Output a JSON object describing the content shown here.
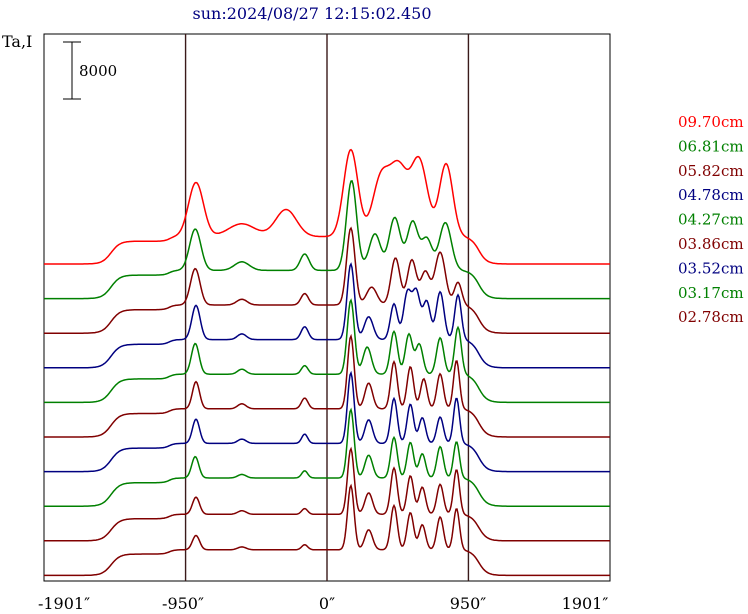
{
  "chart_data": {
    "type": "line",
    "title": "sun:2024/08/27 12:15:02.450",
    "ylabel": "Ta,I",
    "scale_bar_label": "8000",
    "xlim": [
      -1901,
      1901
    ],
    "x_ticks": [
      {
        "value": -1901,
        "label": "-1901″"
      },
      {
        "value": -950,
        "label": "-950″"
      },
      {
        "value": 0,
        "label": "0″"
      },
      {
        "value": 950,
        "label": "950″"
      },
      {
        "value": 1901,
        "label": "1901″"
      }
    ],
    "vertical_lines": [
      -950,
      0,
      950
    ],
    "series_offsets_note": "",
    "series": [
      {
        "name": "09.70cm",
        "color": "#ff0000",
        "baseline": 0,
        "peaks": [
          [
            -880,
            7600,
            50
          ],
          [
            -572,
            1800,
            90
          ],
          [
            -275,
            3800,
            70
          ],
          [
            160,
            12200,
            48
          ],
          [
            360,
            7800,
            55
          ],
          [
            480,
            9500,
            60
          ],
          [
            620,
            10500,
            55
          ],
          [
            800,
            10200,
            45
          ]
        ],
        "plateau": [
          -1450,
          1020,
          2200,
          3200
        ]
      },
      {
        "name": "06.81cm",
        "color": "#008000",
        "baseline": 0,
        "peaks": [
          [
            -885,
            5800,
            38
          ],
          [
            -572,
            1200,
            50
          ],
          [
            -150,
            2300,
            30
          ],
          [
            165,
            12600,
            34
          ],
          [
            310,
            2500,
            40
          ],
          [
            330,
            2800,
            35
          ],
          [
            455,
            7400,
            38
          ],
          [
            575,
            6800,
            36
          ],
          [
            670,
            4400,
            35
          ],
          [
            795,
            6700,
            40
          ]
        ],
        "plateau": [
          -1450,
          1020,
          2300,
          3300
        ]
      },
      {
        "name": "05.82cm",
        "color": "#800000",
        "baseline": 0,
        "peaks": [
          [
            -885,
            5100,
            32
          ],
          [
            -572,
            800,
            35
          ],
          [
            -150,
            1600,
            25
          ],
          [
            160,
            10800,
            28
          ],
          [
            300,
            2500,
            35
          ],
          [
            460,
            6600,
            30
          ],
          [
            570,
            6300,
            30
          ],
          [
            660,
            4600,
            30
          ],
          [
            760,
            7400,
            35
          ],
          [
            880,
            3200,
            25
          ]
        ],
        "plateau": [
          -1450,
          1020,
          2300,
          3300
        ]
      },
      {
        "name": "04.78cm",
        "color": "#000080",
        "baseline": 0,
        "peaks": [
          [
            -880,
            4800,
            28
          ],
          [
            -572,
            800,
            30
          ],
          [
            -150,
            1800,
            24
          ],
          [
            160,
            10600,
            25
          ],
          [
            280,
            3200,
            30
          ],
          [
            450,
            5000,
            24
          ],
          [
            540,
            6500,
            26
          ],
          [
            600,
            6600,
            26
          ],
          [
            670,
            5300,
            25
          ],
          [
            760,
            6700,
            26
          ],
          [
            880,
            6300,
            22
          ]
        ],
        "plateau": [
          -1450,
          1020,
          2300,
          3300
        ]
      },
      {
        "name": "04.27cm",
        "color": "#008000",
        "baseline": 0,
        "peaks": [
          [
            -885,
            4300,
            26
          ],
          [
            -572,
            700,
            28
          ],
          [
            -150,
            1200,
            22
          ],
          [
            160,
            10400,
            24
          ],
          [
            270,
            3800,
            28
          ],
          [
            450,
            6000,
            24
          ],
          [
            550,
            5600,
            24
          ],
          [
            620,
            4200,
            24
          ],
          [
            760,
            5100,
            24
          ],
          [
            880,
            6600,
            22
          ]
        ],
        "plateau": [
          -1450,
          1020,
          2300,
          3300
        ]
      },
      {
        "name": "03.86cm",
        "color": "#800000",
        "baseline": 0,
        "peaks": [
          [
            -880,
            3800,
            24
          ],
          [
            -572,
            700,
            28
          ],
          [
            -150,
            1500,
            22
          ],
          [
            160,
            10200,
            22
          ],
          [
            280,
            3600,
            26
          ],
          [
            450,
            6600,
            22
          ],
          [
            560,
            5900,
            22
          ],
          [
            650,
            4200,
            22
          ],
          [
            760,
            4900,
            22
          ],
          [
            870,
            6800,
            20
          ]
        ],
        "plateau": [
          -1450,
          1020,
          2300,
          3300
        ]
      },
      {
        "name": "03.52cm",
        "color": "#000080",
        "baseline": 0,
        "peaks": [
          [
            -880,
            3400,
            24
          ],
          [
            -572,
            600,
            28
          ],
          [
            -150,
            1300,
            20
          ],
          [
            160,
            9900,
            22
          ],
          [
            280,
            3300,
            26
          ],
          [
            450,
            6300,
            22
          ],
          [
            560,
            5500,
            22
          ],
          [
            640,
            3600,
            22
          ],
          [
            760,
            3700,
            22
          ],
          [
            870,
            6400,
            20
          ]
        ],
        "plateau": [
          -1450,
          1020,
          2300,
          3300
        ]
      },
      {
        "name": "03.17cm",
        "color": "#008000",
        "baseline": 0,
        "peaks": [
          [
            -885,
            3000,
            24
          ],
          [
            -572,
            500,
            28
          ],
          [
            -150,
            1000,
            20
          ],
          [
            160,
            9600,
            22
          ],
          [
            280,
            3200,
            26
          ],
          [
            450,
            5700,
            22
          ],
          [
            560,
            5000,
            22
          ],
          [
            640,
            3400,
            22
          ],
          [
            760,
            4400,
            22
          ],
          [
            870,
            5100,
            20
          ]
        ],
        "plateau": [
          -1450,
          1020,
          2300,
          3300
        ]
      },
      {
        "name": "02.78cm",
        "color": "#800000",
        "baseline": 0,
        "peaks": [
          [
            -880,
            2400,
            24
          ],
          [
            -572,
            500,
            28
          ],
          [
            -150,
            800,
            20
          ],
          [
            160,
            9200,
            22
          ],
          [
            280,
            3000,
            26
          ],
          [
            450,
            6500,
            22
          ],
          [
            560,
            5400,
            22
          ],
          [
            640,
            3800,
            22
          ],
          [
            760,
            4200,
            22
          ],
          [
            870,
            6300,
            20
          ]
        ],
        "plateau": [
          -1450,
          1020,
          2100,
          3100
        ]
      },
      {
        "name": "",
        "color": "#800000",
        "baseline": 0,
        "peaks": [
          [
            -880,
            2000,
            24
          ],
          [
            -572,
            400,
            28
          ],
          [
            -150,
            700,
            20
          ],
          [
            160,
            9000,
            22
          ],
          [
            280,
            2800,
            26
          ],
          [
            450,
            6200,
            22
          ],
          [
            560,
            5200,
            22
          ],
          [
            640,
            3500,
            22
          ],
          [
            760,
            4600,
            22
          ],
          [
            870,
            5800,
            20
          ]
        ],
        "plateau": [
          -1450,
          1020,
          2000,
          3000
        ]
      }
    ]
  }
}
